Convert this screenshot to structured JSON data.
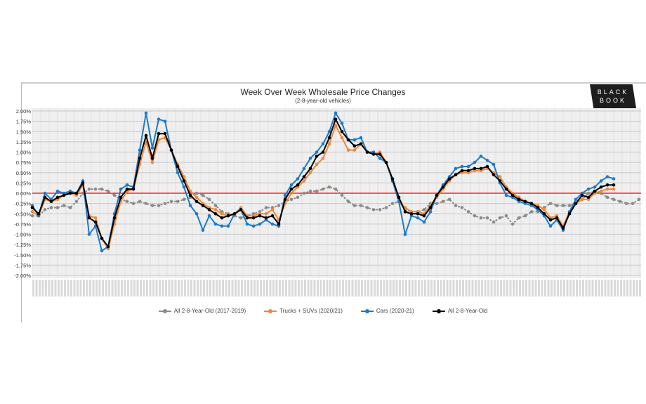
{
  "chart_data": {
    "type": "line",
    "title": "Week Over Week Wholesale Price Changes",
    "subtitle": "(2-8-year-old vehicles)",
    "logo_text": "BLACK BOOK",
    "ylim": [
      -2.0,
      2.0
    ],
    "yticks": [
      "2.00%",
      "1.75%",
      "1.50%",
      "1.25%",
      "1.00%",
      "0.75%",
      "0.50%",
      "0.25%",
      "0.00%",
      "-0.25%",
      "-0.50%",
      "-0.75%",
      "-1.00%",
      "-1.25%",
      "-1.50%",
      "-1.75%",
      "-2.00%"
    ],
    "ytick_values": [
      2.0,
      1.75,
      1.5,
      1.25,
      1.0,
      0.75,
      0.5,
      0.25,
      0.0,
      -0.25,
      -0.5,
      -0.75,
      -1.0,
      -1.25,
      -1.5,
      -1.75,
      -2.0
    ],
    "reference_line": {
      "value": 0.0,
      "color": "#ff0000"
    },
    "grid": true,
    "legend_position": "bottom",
    "series": [
      {
        "name": "All 2-8-Year-Old (2017-2019)",
        "color": "#8c8c8c",
        "dashed": true,
        "values": [
          -0.55,
          -0.55,
          -0.4,
          -0.35,
          -0.35,
          -0.3,
          -0.35,
          -0.2,
          0.0,
          0.1,
          0.1,
          0.1,
          0.05,
          -0.05,
          -0.15,
          -0.2,
          -0.25,
          -0.2,
          -0.25,
          -0.3,
          -0.3,
          -0.25,
          -0.2,
          -0.2,
          -0.15,
          -0.1,
          0.0,
          -0.05,
          -0.15,
          -0.3,
          -0.45,
          -0.5,
          -0.55,
          -0.6,
          -0.55,
          -0.5,
          -0.45,
          -0.35,
          -0.35,
          -0.3,
          -0.2,
          -0.15,
          -0.1,
          0.0,
          0.05,
          0.05,
          0.1,
          0.15,
          0.1,
          -0.05,
          -0.2,
          -0.3,
          -0.3,
          -0.35,
          -0.4,
          -0.4,
          -0.35,
          -0.25,
          -0.2,
          -0.4,
          -0.45,
          -0.45,
          -0.4,
          -0.25,
          -0.25,
          -0.2,
          -0.15,
          -0.3,
          -0.35,
          -0.45,
          -0.55,
          -0.6,
          -0.6,
          -0.7,
          -0.6,
          -0.55,
          -0.75,
          -0.6,
          -0.55,
          -0.45,
          -0.45,
          -0.35,
          -0.25,
          -0.3,
          -0.3,
          -0.3,
          -0.25,
          -0.15,
          0.0,
          0.05,
          0.0,
          -0.1,
          -0.15,
          -0.2,
          -0.25,
          -0.25,
          -0.15
        ]
      },
      {
        "name": "Trucks + SUVs (2020/21)",
        "color": "#f0883a",
        "values": [
          -0.45,
          -0.55,
          -0.15,
          -0.2,
          -0.15,
          -0.05,
          0.0,
          -0.05,
          0.2,
          -0.55,
          -0.6,
          -1.1,
          -1.35,
          -0.75,
          -0.2,
          0.05,
          0.1,
          0.7,
          1.25,
          0.75,
          1.3,
          1.35,
          1.05,
          0.7,
          0.4,
          0.05,
          -0.1,
          -0.25,
          -0.35,
          -0.4,
          -0.5,
          -0.55,
          -0.5,
          -0.35,
          -0.55,
          -0.55,
          -0.5,
          -0.5,
          -0.4,
          -0.65,
          -0.25,
          0.0,
          0.15,
          0.3,
          0.5,
          0.7,
          0.85,
          1.2,
          1.65,
          1.35,
          1.05,
          1.05,
          1.2,
          1.0,
          0.95,
          1.0,
          0.75,
          0.3,
          -0.2,
          -0.35,
          -0.45,
          -0.45,
          -0.5,
          -0.3,
          -0.1,
          0.1,
          0.3,
          0.45,
          0.5,
          0.5,
          0.55,
          0.55,
          0.6,
          0.5,
          0.4,
          0.15,
          0.0,
          -0.1,
          -0.2,
          -0.25,
          -0.3,
          -0.4,
          -0.6,
          -0.55,
          -0.8,
          -0.45,
          -0.25,
          -0.15,
          -0.15,
          0.0,
          0.05,
          0.1,
          0.1
        ]
      },
      {
        "name": "Cars (2020-21)",
        "color": "#1f7ac8",
        "values": [
          -0.3,
          -0.55,
          0.0,
          -0.15,
          0.05,
          0.0,
          0.05,
          0.0,
          0.3,
          -1.0,
          -0.8,
          -1.4,
          -1.3,
          -0.5,
          0.1,
          0.2,
          0.15,
          1.05,
          1.95,
          1.1,
          1.8,
          1.75,
          1.05,
          0.5,
          0.15,
          -0.3,
          -0.5,
          -0.9,
          -0.55,
          -0.75,
          -0.8,
          -0.8,
          -0.5,
          -0.4,
          -0.75,
          -0.8,
          -0.75,
          -0.65,
          -0.75,
          -0.8,
          -0.05,
          0.2,
          0.35,
          0.6,
          0.85,
          1.0,
          1.2,
          1.5,
          1.95,
          1.7,
          1.3,
          1.3,
          1.35,
          1.0,
          1.0,
          0.85,
          0.75,
          0.3,
          -0.2,
          -1.0,
          -0.55,
          -0.6,
          -0.7,
          -0.45,
          -0.05,
          0.2,
          0.4,
          0.6,
          0.65,
          0.65,
          0.75,
          0.9,
          0.8,
          0.7,
          0.25,
          -0.05,
          -0.1,
          -0.2,
          -0.25,
          -0.3,
          -0.4,
          -0.55,
          -0.8,
          -0.65,
          -0.9,
          -0.45,
          -0.15,
          0.0,
          0.1,
          0.15,
          0.3,
          0.4,
          0.35
        ]
      },
      {
        "name": "All 2-8-Year-Old",
        "color": "#000000",
        "values": [
          -0.35,
          -0.5,
          -0.1,
          -0.2,
          -0.1,
          -0.05,
          0.0,
          0.0,
          0.25,
          -0.6,
          -0.7,
          -1.1,
          -1.3,
          -0.6,
          -0.1,
          0.1,
          0.1,
          0.85,
          1.4,
          0.85,
          1.45,
          1.45,
          1.05,
          0.65,
          0.3,
          -0.05,
          -0.2,
          -0.3,
          -0.4,
          -0.5,
          -0.6,
          -0.55,
          -0.5,
          -0.4,
          -0.6,
          -0.6,
          -0.55,
          -0.6,
          -0.55,
          -0.75,
          -0.15,
          0.1,
          0.2,
          0.4,
          0.6,
          0.9,
          1.0,
          1.35,
          1.8,
          1.5,
          1.3,
          1.15,
          1.2,
          1.0,
          0.95,
          0.95,
          0.75,
          0.35,
          -0.1,
          -0.45,
          -0.5,
          -0.5,
          -0.55,
          -0.35,
          -0.05,
          0.15,
          0.35,
          0.45,
          0.55,
          0.55,
          0.6,
          0.6,
          0.65,
          0.45,
          0.3,
          0.1,
          -0.05,
          -0.15,
          -0.2,
          -0.25,
          -0.35,
          -0.5,
          -0.65,
          -0.6,
          -0.85,
          -0.5,
          -0.25,
          -0.05,
          -0.1,
          0.05,
          0.15,
          0.2,
          0.2
        ]
      }
    ]
  }
}
